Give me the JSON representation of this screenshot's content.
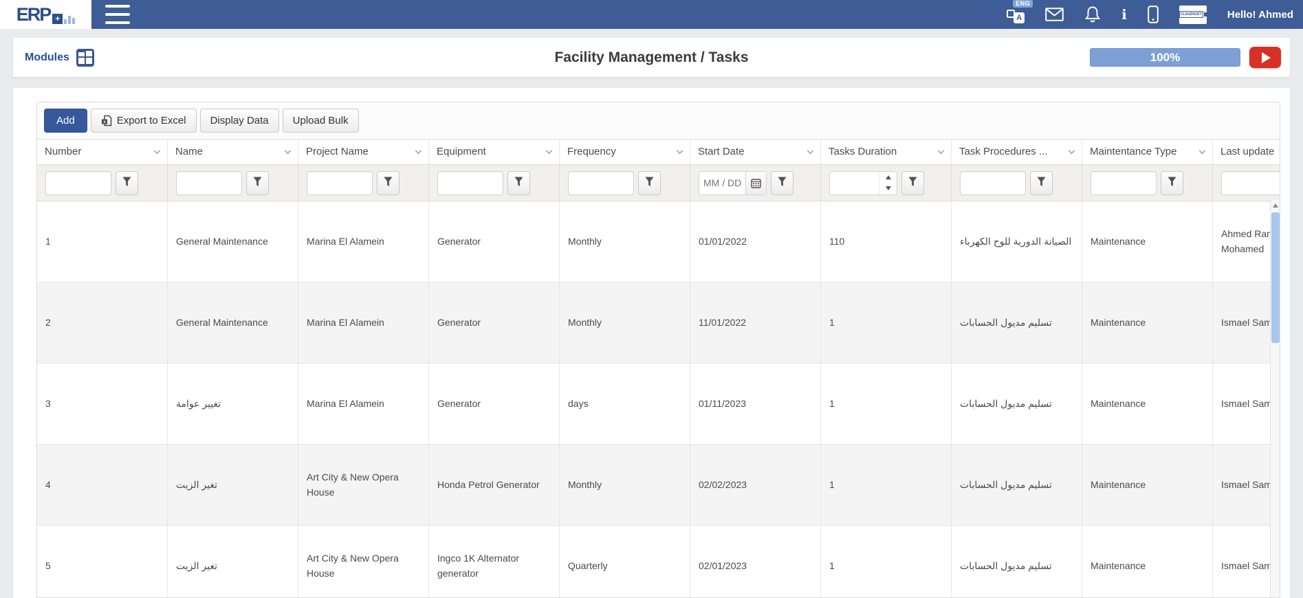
{
  "navbar": {
    "logo_text": "ERP",
    "language_badge": "ENG",
    "language_glyph": "A",
    "brand_badge_text": "CLOUDSOFT",
    "info_glyph": "i",
    "greeting": "Hello! Ahmed"
  },
  "title_bar": {
    "modules_label": "Modules",
    "page_title": "Facility Management / Tasks",
    "progress": {
      "value": "100%",
      "percent": 100
    }
  },
  "toolbar": {
    "add_label": "Add",
    "export_excel_label": "Export to Excel",
    "display_data_label": "Display Data",
    "upload_bulk_label": "Upload Bulk"
  },
  "grid": {
    "columns": [
      {
        "label": "Number",
        "filter": "text"
      },
      {
        "label": "Name",
        "filter": "text"
      },
      {
        "label": "Project Name",
        "filter": "text"
      },
      {
        "label": "Equipment",
        "filter": "text"
      },
      {
        "label": "Frequency",
        "filter": "text"
      },
      {
        "label": "Start Date",
        "filter": "date",
        "date_placeholder": "MM / DD"
      },
      {
        "label": "Tasks Duration",
        "filter": "number"
      },
      {
        "label": "Task Procedures ...",
        "filter": "text"
      },
      {
        "label": "Maintentance Type",
        "filter": "text"
      },
      {
        "label": "Last update",
        "filter": "text"
      }
    ],
    "rows": [
      [
        "1",
        "General Maintenance",
        "Marina El Alamein",
        "Generator",
        "Monthly",
        "01/01/2022",
        "110",
        "الصيانة الدورية للوح الكهرباء",
        "Maintenance",
        "Ahmed Ram\nMohamed"
      ],
      [
        "2",
        "General Maintenance",
        "Marina El Alamein",
        "Generator",
        "Monthly",
        "11/01/2022",
        "1",
        "تسليم مديول الحسابات",
        "Maintenance",
        "Ismael Sam"
      ],
      [
        "3",
        "تغيير عوامة",
        "Marina El Alamein",
        "Generator",
        "days",
        "01/11/2023",
        "1",
        "تسليم مديول الحسابات",
        "Maintenance",
        "Ismael Sam"
      ],
      [
        "4",
        "تغير الزيت",
        "Art City & New Opera House",
        "Honda Petrol Generator",
        "Monthly",
        "02/02/2023",
        "1",
        "تسليم مديول الحسابات",
        "Maintenance",
        "Ismael Sam"
      ],
      [
        "5",
        "تغير الزيت",
        "Art City & New Opera House",
        "Ingco 1K Alternator generator",
        "Quarterly",
        "02/01/2023",
        "1",
        "تسليم مديول الحسابات",
        "Maintenance",
        "Ismael Sam"
      ]
    ]
  },
  "icons": {
    "hamburger-icon": "three bars",
    "translate-icon": "A box with ENG badge",
    "mail-icon": "envelope",
    "notifications-icon": "bell",
    "info-icon": "letter i",
    "mobile-icon": "phone outline",
    "modules-grid-icon": "blue tile grid",
    "excel-icon": "document with x",
    "filter-funnel-icon": "funnel",
    "calendar-icon": "calendar",
    "play-icon": "triangle"
  },
  "colors": {
    "navbar_blue": "#3e5c96",
    "accent_blue": "#37599b",
    "link_blue": "#27508f",
    "progress_fill": "#7da0d6",
    "play_red": "#d83025",
    "row_stripe": "#f4f4f4",
    "filter_row_bg": "#f1f0ef",
    "scroll_thumb": "#a9c6ec"
  }
}
